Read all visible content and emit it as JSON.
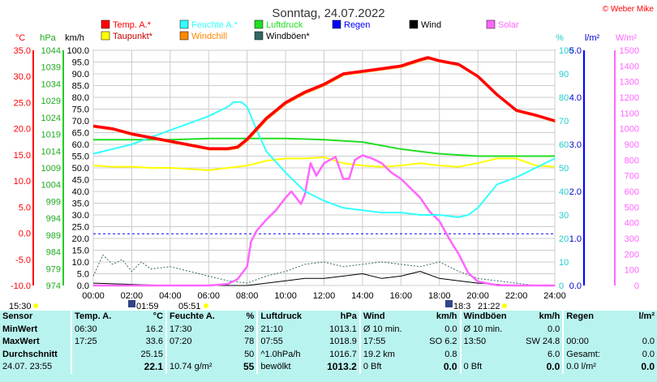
{
  "title": "Sonntag, 24.07.2022",
  "credit": "© Weber Mike",
  "legend": [
    {
      "name": "Temp. A.*",
      "color": "#ff0000"
    },
    {
      "name": "Feuchte A.*",
      "color": "#33ffff"
    },
    {
      "name": "Luftdruck",
      "color": "#22dd22"
    },
    {
      "name": "Regen",
      "color": "#0000ff"
    },
    {
      "name": "Wind",
      "color": "#000000"
    },
    {
      "name": "Solar",
      "color": "#ff66ff"
    },
    {
      "name": "Taupunkt*",
      "color": "#ffff00"
    },
    {
      "name": "Windchill",
      "color": "#ff8800"
    },
    {
      "name": "Windböen*",
      "color": "#336666"
    }
  ],
  "axis_headers": {
    "temp": "°C",
    "pressure": "hPa",
    "wind": "km/h",
    "humidity": "%",
    "rain": "l/m²",
    "solar": "W/m²"
  },
  "chart_data": {
    "type": "line",
    "x_ticks": [
      "00:00",
      "02:00",
      "04:00",
      "06:00",
      "08:00",
      "10:00",
      "12:00",
      "14:00",
      "16:00",
      "18:00",
      "20:00",
      "22:00",
      "24:00"
    ],
    "temp_ticks": [
      "35.0",
      "30.0",
      "25.0",
      "20.0",
      "15.0",
      "10.0",
      "5.0",
      "0.0",
      "-5.0",
      "-10.0"
    ],
    "pressure_ticks": [
      "1044",
      "1039",
      "1034",
      "1029",
      "1024",
      "1019",
      "1014",
      "1009",
      "1004",
      "999",
      "994",
      "989",
      "984",
      "979",
      "974"
    ],
    "wind_ticks": [
      "100.0",
      "95.0",
      "90.0",
      "85.0",
      "80.0",
      "75.0",
      "70.0",
      "65.0",
      "60.0",
      "55.0",
      "50.0",
      "45.0",
      "40.0",
      "35.0",
      "30.0",
      "25.0",
      "20.0",
      "15.0",
      "10.0",
      "5.0",
      "0.0"
    ],
    "humidity_ticks": [
      "100",
      "90",
      "80",
      "70",
      "60",
      "50",
      "40",
      "30",
      "20",
      "10",
      "0"
    ],
    "rain_ticks": [
      "5.0",
      "4.0",
      "3.0",
      "2.0",
      "1.0",
      "0.0"
    ],
    "solar_ticks": [
      "1500",
      "1400",
      "1300",
      "1200",
      "1100",
      "1000",
      "900",
      "800",
      "700",
      "600",
      "500",
      "400",
      "300",
      "200",
      "100",
      "0"
    ],
    "ranges": {
      "x": [
        0,
        24
      ],
      "temp": [
        -10,
        35
      ],
      "wind": [
        0,
        100
      ],
      "humidity": [
        0,
        100
      ],
      "rain": [
        0,
        5
      ],
      "solar": [
        0,
        1500
      ],
      "pressure": [
        974,
        1044
      ]
    },
    "series": [
      {
        "name": "Temp. A.*",
        "color": "#ff0000",
        "axis": "temp",
        "x": [
          0,
          1,
          2,
          3,
          4,
          5,
          6,
          7,
          7.5,
          8,
          9,
          10,
          11,
          12,
          13,
          14,
          15,
          16,
          17,
          17.4,
          18,
          19,
          20,
          21,
          22,
          23,
          24
        ],
        "values": [
          20.5,
          20,
          19,
          18.3,
          17.6,
          16.9,
          16.2,
          16.2,
          16.5,
          18,
          22,
          25,
          27,
          28.5,
          30.5,
          31,
          31.5,
          32,
          33.2,
          33.6,
          33,
          32.3,
          30,
          26.5,
          23.5,
          22.6,
          21.5
        ]
      },
      {
        "name": "Feuchte A.*",
        "color": "#33ffff",
        "axis": "humidity",
        "x": [
          0,
          1,
          2,
          3,
          4,
          5,
          6,
          7,
          7.3,
          7.7,
          8,
          8.5,
          9,
          10,
          11,
          12,
          13,
          14,
          15,
          16,
          17,
          18,
          19,
          19.5,
          20,
          20.5,
          21,
          22,
          23,
          24
        ],
        "values": [
          56,
          58,
          60,
          63,
          66,
          69,
          72,
          76,
          78,
          78,
          76,
          66,
          57,
          48,
          40,
          36,
          33,
          32,
          31,
          31,
          30,
          30,
          29,
          30,
          33,
          38,
          43,
          46,
          50,
          54
        ]
      },
      {
        "name": "Luftdruck",
        "color": "#22dd22",
        "axis": "humidity",
        "x": [
          0,
          2,
          4,
          6,
          8,
          10,
          12,
          14,
          16,
          18,
          20,
          22,
          24
        ],
        "values": [
          62,
          62,
          62,
          62.5,
          62.5,
          62.5,
          62,
          61,
          58,
          56,
          55,
          55,
          55
        ]
      },
      {
        "name": "Taupunkt*",
        "color": "#ffff00",
        "axis": "humidity",
        "x": [
          0,
          1,
          2,
          3,
          4,
          5,
          6,
          7,
          8,
          9,
          10,
          11,
          12,
          13,
          14,
          15,
          16,
          17,
          18,
          19,
          20,
          21,
          22,
          23,
          24
        ],
        "values": [
          51,
          50.5,
          50.5,
          50,
          50,
          49.5,
          49,
          50,
          51,
          53,
          54,
          54,
          54.5,
          52,
          51,
          50.5,
          51,
          52,
          51,
          50.5,
          52,
          54,
          54,
          51,
          50.5
        ]
      },
      {
        "name": "Solar",
        "color": "#ff66ff",
        "axis": "solar",
        "x": [
          0,
          6,
          7,
          7.5,
          8,
          8.2,
          8.5,
          9,
          9.5,
          10,
          10.3,
          10.8,
          11,
          11.3,
          11.6,
          12,
          12.3,
          12.6,
          13,
          13.3,
          13.6,
          14,
          14.5,
          15,
          15.5,
          16,
          16.5,
          17,
          17.5,
          18,
          18.5,
          19,
          19.5,
          20,
          21,
          22,
          24
        ],
        "values": [
          0,
          0,
          10,
          40,
          120,
          280,
          350,
          420,
          480,
          560,
          600,
          520,
          580,
          780,
          700,
          780,
          800,
          820,
          680,
          680,
          800,
          830,
          810,
          780,
          720,
          680,
          620,
          560,
          470,
          410,
          300,
          200,
          80,
          25,
          2,
          0,
          0
        ]
      },
      {
        "name": "Wind",
        "color": "#000000",
        "axis": "wind",
        "x": [
          0,
          2,
          4,
          6,
          8,
          9,
          10,
          11,
          12,
          13,
          14,
          15,
          16,
          17,
          18,
          19,
          20,
          21,
          22,
          24
        ],
        "values": [
          1,
          0.5,
          0,
          0,
          0,
          1,
          2,
          3,
          3,
          4,
          5,
          3,
          4,
          6,
          3,
          2,
          1,
          0.5,
          0,
          0
        ]
      },
      {
        "name": "Windböen*",
        "color": "#336666",
        "axis": "wind",
        "x": [
          0,
          0.5,
          1,
          1.5,
          2,
          2.5,
          3,
          4,
          5,
          6,
          7,
          8,
          9,
          10,
          11,
          12,
          13,
          14,
          15,
          16,
          17,
          18,
          19,
          20,
          21,
          22,
          23,
          24
        ],
        "values": [
          4,
          13,
          9,
          11,
          6,
          10,
          7,
          8,
          6,
          4,
          2,
          1,
          4,
          6,
          9,
          10,
          8,
          9,
          10,
          9,
          8,
          10,
          6,
          3,
          2,
          1,
          0,
          0
        ]
      }
    ],
    "regen_reference": {
      "axis": "humidity",
      "value": 22
    }
  },
  "stats": {
    "header": [
      "Sensor",
      "Temp. A.",
      "°C",
      "Feuchte A.",
      "%",
      "Luftdruck",
      "hPa",
      "Wind",
      "km/h",
      "Windböen",
      "km/h",
      "Regen",
      "l/m²"
    ],
    "rows": [
      [
        "MinWert",
        "06:30",
        "16.2",
        "17:30",
        "29",
        "21:10",
        "1013.1",
        "Ø 10 min.",
        "0.0",
        "Ø 10 min.",
        "0.0",
        "",
        ""
      ],
      [
        "MaxWert",
        "17:25",
        "33.6",
        "07:20",
        "78",
        "07:55",
        "1018.9",
        "17:55",
        "SO 6.2",
        "13:50",
        "SW 24.8",
        "00:00",
        "0.0"
      ],
      [
        "Durchschnitt",
        "",
        "25.15",
        "",
        "50",
        "^1.0hPa/h",
        "1016.7",
        "19.2 km",
        "0.8",
        "",
        "6.0",
        "Gesamt:",
        "0.0"
      ],
      [
        "24.07. 23:55",
        "",
        "22.1",
        "10.74 g/m²",
        "55",
        "bewölkt",
        "1013.2",
        "0 Bft",
        "0.0",
        "0 Bft",
        "0.0",
        "0.0 l/m²",
        "0.0"
      ]
    ]
  },
  "sun": {
    "left_time": "15:30",
    "sunrise": "01:59",
    "dawn": "05:51",
    "sunset": "18:3",
    "dusk": "21:22"
  }
}
